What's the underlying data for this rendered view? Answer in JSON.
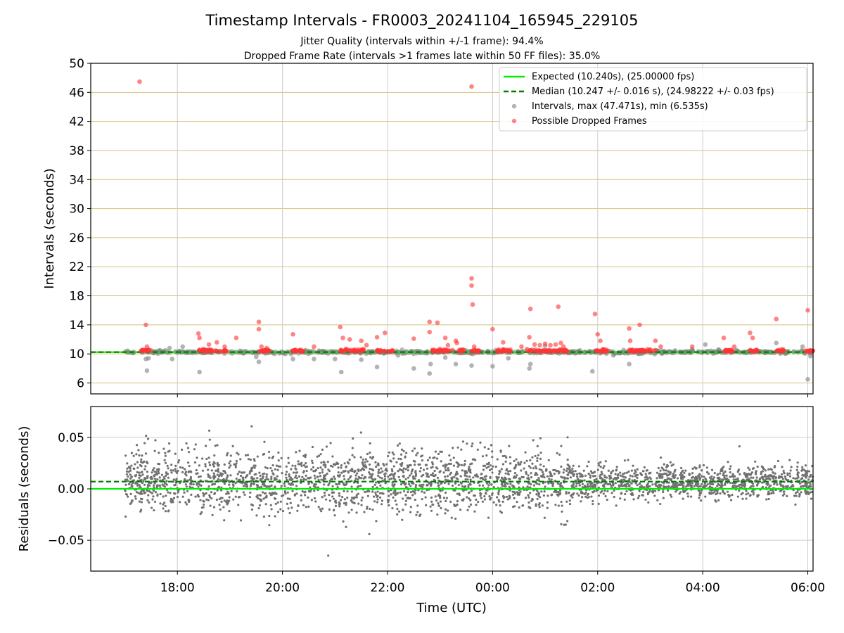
{
  "figure": {
    "title": "Timestamp Intervals - FR0003_20241104_165945_229105",
    "subtitle1": "Jitter Quality (intervals within +/-1 frame): 94.4%",
    "subtitle2": "Dropped Frame Rate (intervals >1 frames late within 50 FF files): 35.0%"
  },
  "colors": {
    "expected": "#00ee00",
    "median": "#007f00",
    "intervals": "#808080",
    "dropped": "#ff3333",
    "grid_top": "#d4c27a",
    "grid": "#cccccc"
  },
  "chart_data": [
    {
      "type": "scatter",
      "ylabel": "Intervals (seconds)",
      "xlabel": "",
      "x_unit": "hours since 16:00 UTC",
      "xlim": [
        16.35,
        30.1
      ],
      "ylim": [
        4.5,
        50
      ],
      "yticks": [
        6,
        10,
        14,
        18,
        22,
        26,
        30,
        34,
        38,
        42,
        46,
        50
      ],
      "xticks": [
        {
          "v": 18,
          "label": "18:00"
        },
        {
          "v": 20,
          "label": "20:00"
        },
        {
          "v": 22,
          "label": "22:00"
        },
        {
          "v": 24,
          "label": "00:00"
        },
        {
          "v": 26,
          "label": "02:00"
        },
        {
          "v": 28,
          "label": "04:00"
        },
        {
          "v": 30,
          "label": "06:00"
        }
      ],
      "expected": 10.24,
      "median": 10.247,
      "legend": {
        "placement": "top-right",
        "entries": [
          {
            "label": "Expected (10.240s), (25.00000 fps)",
            "kind": "solid"
          },
          {
            "label": "Median (10.247 +/- 0.016 s), (24.98222 +/- 0.03 fps)",
            "kind": "dashed"
          },
          {
            "label": "Intervals, max (47.471s), min (6.535s)",
            "kind": "gray"
          },
          {
            "label": "Possible Dropped Frames",
            "kind": "red"
          }
        ]
      },
      "dropped_points": [
        [
          17.28,
          47.47
        ],
        [
          17.4,
          14.0
        ],
        [
          17.42,
          11.0
        ],
        [
          17.45,
          10.6
        ],
        [
          18.4,
          12.8
        ],
        [
          18.42,
          12.2
        ],
        [
          18.6,
          11.3
        ],
        [
          18.75,
          11.6
        ],
        [
          18.9,
          11.0
        ],
        [
          19.12,
          12.2
        ],
        [
          19.55,
          14.4
        ],
        [
          19.55,
          13.4
        ],
        [
          19.6,
          11.0
        ],
        [
          19.7,
          10.8
        ],
        [
          20.2,
          12.7
        ],
        [
          20.6,
          11.0
        ],
        [
          21.1,
          13.7
        ],
        [
          21.15,
          12.2
        ],
        [
          21.28,
          12.0
        ],
        [
          21.5,
          11.8
        ],
        [
          21.6,
          11.2
        ],
        [
          21.8,
          12.3
        ],
        [
          21.95,
          12.9
        ],
        [
          22.5,
          12.1
        ],
        [
          22.8,
          14.4
        ],
        [
          22.8,
          13.0
        ],
        [
          22.95,
          14.3
        ],
        [
          23.1,
          12.2
        ],
        [
          23.15,
          11.2
        ],
        [
          23.3,
          11.8
        ],
        [
          23.32,
          11.5
        ],
        [
          23.6,
          46.8
        ],
        [
          23.6,
          20.4
        ],
        [
          23.6,
          19.4
        ],
        [
          23.62,
          16.8
        ],
        [
          23.65,
          11.0
        ],
        [
          24.0,
          13.4
        ],
        [
          24.2,
          11.6
        ],
        [
          24.55,
          11.0
        ],
        [
          24.7,
          12.3
        ],
        [
          24.72,
          16.2
        ],
        [
          24.8,
          11.3
        ],
        [
          24.9,
          11.2
        ],
        [
          25.0,
          11.4
        ],
        [
          25.1,
          11.2
        ],
        [
          25.2,
          11.3
        ],
        [
          25.3,
          11.5
        ],
        [
          25.25,
          16.5
        ],
        [
          25.35,
          11.0
        ],
        [
          25.95,
          15.5
        ],
        [
          26.0,
          12.7
        ],
        [
          26.05,
          11.8
        ],
        [
          26.6,
          13.5
        ],
        [
          26.62,
          11.8
        ],
        [
          26.8,
          14.0
        ],
        [
          27.1,
          11.8
        ],
        [
          27.2,
          11.0
        ],
        [
          27.8,
          11.0
        ],
        [
          28.4,
          12.2
        ],
        [
          28.6,
          11.0
        ],
        [
          28.9,
          12.9
        ],
        [
          28.95,
          12.2
        ],
        [
          29.4,
          14.8
        ],
        [
          30.0,
          16.0
        ]
      ],
      "gray_low_points": [
        [
          17.42,
          7.7
        ],
        [
          17.45,
          9.4
        ],
        [
          17.4,
          9.3
        ],
        [
          17.9,
          9.3
        ],
        [
          17.85,
          10.8
        ],
        [
          18.1,
          11.0
        ],
        [
          18.42,
          7.5
        ],
        [
          18.6,
          10.6
        ],
        [
          19.55,
          8.9
        ],
        [
          19.5,
          9.6
        ],
        [
          20.2,
          9.3
        ],
        [
          20.6,
          9.3
        ],
        [
          21.0,
          9.3
        ],
        [
          21.12,
          7.5
        ],
        [
          21.5,
          9.2
        ],
        [
          21.8,
          8.2
        ],
        [
          22.2,
          9.8
        ],
        [
          22.5,
          8.0
        ],
        [
          22.8,
          7.3
        ],
        [
          22.82,
          8.6
        ],
        [
          23.1,
          9.5
        ],
        [
          23.3,
          8.6
        ],
        [
          23.6,
          8.4
        ],
        [
          24.0,
          8.3
        ],
        [
          24.3,
          9.4
        ],
        [
          24.7,
          8.0
        ],
        [
          24.72,
          8.6
        ],
        [
          25.0,
          11.1
        ],
        [
          25.9,
          7.6
        ],
        [
          26.3,
          9.8
        ],
        [
          26.6,
          8.6
        ],
        [
          27.8,
          10.6
        ],
        [
          28.05,
          11.3
        ],
        [
          28.3,
          10.6
        ],
        [
          29.4,
          11.5
        ],
        [
          29.9,
          11.0
        ],
        [
          30.0,
          6.5
        ],
        [
          30.05,
          9.7
        ]
      ]
    },
    {
      "type": "scatter",
      "ylabel": "Residuals (seconds)",
      "xlabel": "Time (UTC)",
      "x_unit": "hours since 16:00 UTC",
      "xlim": [
        16.35,
        30.1
      ],
      "ylim": [
        -0.08,
        0.08
      ],
      "yticks": [
        {
          "v": 0.05,
          "label": "0.05"
        },
        {
          "v": 0.0,
          "label": "0.00"
        },
        {
          "v": -0.05,
          "label": "−0.05"
        }
      ],
      "xticks": [
        {
          "v": 18,
          "label": "18:00"
        },
        {
          "v": 20,
          "label": "20:00"
        },
        {
          "v": 22,
          "label": "22:00"
        },
        {
          "v": 24,
          "label": "00:00"
        },
        {
          "v": 26,
          "label": "02:00"
        },
        {
          "v": 28,
          "label": "04:00"
        },
        {
          "v": 30,
          "label": "06:00"
        }
      ],
      "expected": 0.0,
      "median": 0.007,
      "data_range": [
        17.0,
        30.1
      ],
      "point_count": 3000
    }
  ]
}
